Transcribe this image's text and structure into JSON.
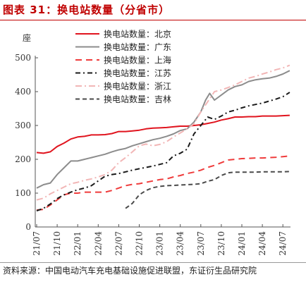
{
  "figure": {
    "title": "图表 31：换电站数量（分省市）",
    "source": "资料来源：中国电动汽车充电基础设施促进联盟，东证衍生品研究院"
  },
  "chart_data": {
    "type": "line",
    "ylabel": "座",
    "ylim": [
      0,
      500
    ],
    "yticks": [
      0,
      100,
      200,
      300,
      400,
      500
    ],
    "xtick_labels": [
      "21/07",
      "21/10",
      "22/01",
      "22/04",
      "22/07",
      "22/10",
      "23/01",
      "23/04",
      "23/07",
      "23/10",
      "24/01",
      "24/04",
      "24/07"
    ],
    "x_range": [
      0,
      37.5
    ],
    "legend_position": "top-left",
    "series": [
      {
        "name": "换电站数量：北京",
        "color": "#e0141e",
        "dash": "solid",
        "x": [
          0,
          1,
          2,
          3,
          4,
          5,
          6,
          7,
          8,
          9,
          10,
          11,
          12,
          13,
          14,
          15,
          16,
          17,
          18,
          19,
          20,
          21,
          22,
          23,
          24,
          25,
          26,
          27,
          28,
          29,
          30,
          31,
          32,
          33,
          34,
          35,
          36,
          37
        ],
        "y": [
          220,
          218,
          222,
          238,
          248,
          260,
          266,
          268,
          272,
          272,
          273,
          276,
          282,
          282,
          284,
          286,
          290,
          292,
          293,
          294,
          296,
          298,
          298,
          300,
          302,
          306,
          310,
          316,
          320,
          325,
          325,
          326,
          326,
          328,
          328,
          328,
          329,
          330
        ]
      },
      {
        "name": "换电站数量：广东",
        "color": "#8c8c8c",
        "dash": "solid",
        "x": [
          0,
          1,
          2,
          3,
          4,
          5,
          6,
          7,
          8,
          9,
          10,
          11,
          12,
          13,
          14,
          15,
          16,
          17,
          18,
          19,
          20,
          21,
          22,
          23,
          24,
          24.7,
          25.3,
          26,
          27,
          28,
          29,
          30,
          31,
          32,
          33,
          34,
          35,
          36,
          37
        ],
        "y": [
          115,
          125,
          130,
          155,
          175,
          195,
          195,
          200,
          205,
          210,
          215,
          222,
          228,
          232,
          240,
          246,
          252,
          258,
          262,
          268,
          275,
          285,
          290,
          310,
          340,
          375,
          395,
          375,
          390,
          405,
          415,
          420,
          430,
          435,
          438,
          440,
          445,
          452,
          462
        ]
      },
      {
        "name": "换电站数量：上海",
        "color": "#ef3b3b",
        "dash": "9,6",
        "x": [
          0,
          1,
          2,
          3,
          4,
          5,
          6,
          7,
          8,
          9,
          10,
          11,
          12,
          13,
          14,
          15,
          16,
          17,
          18,
          19,
          20,
          21,
          22,
          23,
          24,
          25,
          26,
          27,
          28,
          29,
          30,
          31,
          32,
          33,
          34,
          35,
          36,
          37
        ],
        "y": [
          50,
          52,
          65,
          80,
          95,
          100,
          100,
          103,
          103,
          103,
          103,
          108,
          115,
          122,
          126,
          128,
          132,
          136,
          140,
          142,
          148,
          152,
          158,
          162,
          168,
          176,
          182,
          190,
          198,
          200,
          202,
          203,
          204,
          204,
          205,
          206,
          208,
          210
        ]
      },
      {
        "name": "换电站数量：江苏",
        "color": "#1a1a1a",
        "dash": "7,4,2,4",
        "x": [
          0,
          1,
          2,
          3,
          4,
          5,
          6,
          7,
          8,
          9,
          10,
          11,
          12,
          13,
          14,
          15,
          16,
          17,
          18,
          19,
          20,
          21,
          22,
          23,
          24,
          25,
          26,
          27,
          28,
          29,
          30,
          31,
          32,
          33,
          34,
          35,
          36,
          37
        ],
        "y": [
          48,
          55,
          68,
          84,
          95,
          103,
          110,
          115,
          122,
          136,
          150,
          155,
          158,
          163,
          168,
          172,
          176,
          180,
          185,
          190,
          210,
          218,
          230,
          275,
          300,
          325,
          318,
          328,
          340,
          345,
          352,
          358,
          362,
          366,
          372,
          378,
          385,
          398
        ]
      },
      {
        "name": "换电站数量：浙江",
        "color": "#f2b6b6",
        "dash": "9,4,2,4",
        "x": [
          0,
          1,
          2,
          3,
          4,
          5,
          6,
          7,
          8,
          9,
          10,
          11,
          12,
          13,
          14,
          15,
          16,
          17,
          18,
          19,
          20,
          21,
          22,
          23,
          24,
          25,
          26,
          27,
          28,
          29,
          30,
          31,
          32,
          33,
          34,
          35,
          36,
          37
        ],
        "y": [
          80,
          85,
          98,
          108,
          118,
          128,
          132,
          138,
          142,
          148,
          155,
          168,
          190,
          205,
          222,
          240,
          245,
          240,
          244,
          252,
          266,
          278,
          290,
          305,
          340,
          370,
          400,
          405,
          412,
          420,
          430,
          440,
          445,
          452,
          458,
          465,
          470,
          478
        ]
      },
      {
        "name": "换电站数量：吉林",
        "color": "#4a4a4a",
        "dash": "6,4",
        "x": [
          13,
          14,
          15,
          16,
          17,
          18,
          19,
          20,
          21,
          22,
          23,
          24,
          25,
          26,
          27,
          28,
          29,
          30,
          31,
          32,
          33,
          34,
          35,
          36,
          37
        ],
        "y": [
          55,
          70,
          95,
          108,
          116,
          120,
          122,
          123,
          124,
          125,
          126,
          128,
          135,
          140,
          152,
          160,
          162,
          162,
          162,
          162,
          163,
          163,
          163,
          163,
          164
        ]
      }
    ]
  }
}
